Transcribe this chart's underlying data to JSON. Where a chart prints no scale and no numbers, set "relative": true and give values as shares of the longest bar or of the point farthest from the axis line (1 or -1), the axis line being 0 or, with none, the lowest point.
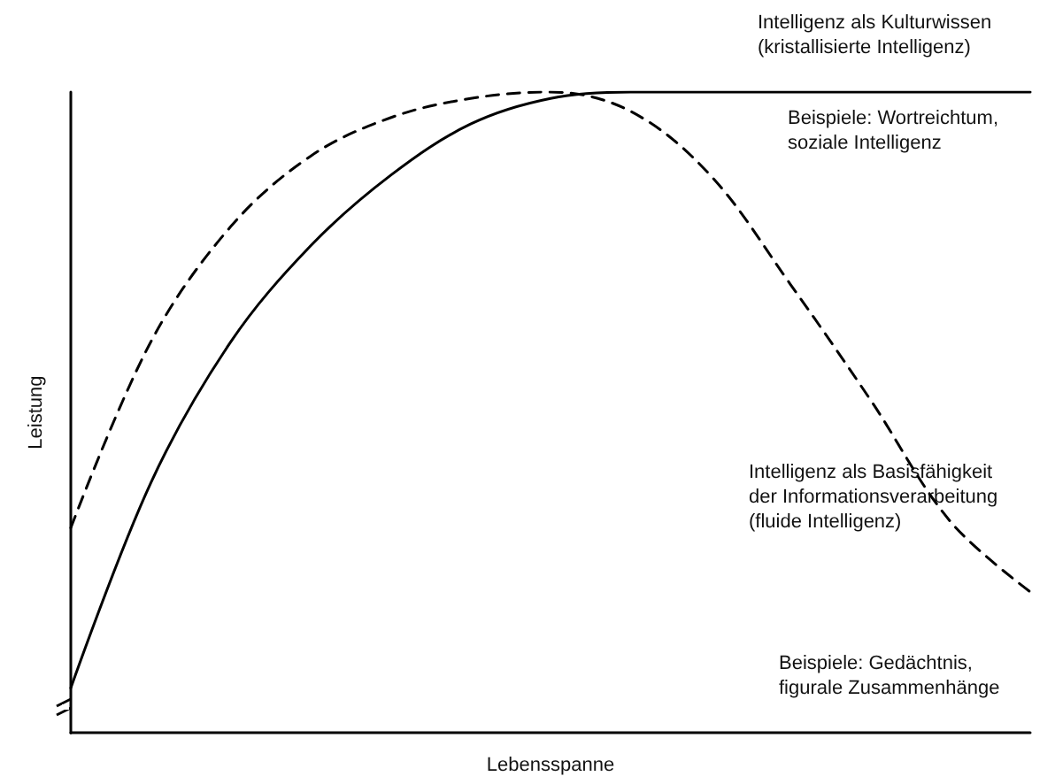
{
  "chart_data": {
    "type": "line",
    "relative": true,
    "xlabel": "Lebensspanne",
    "ylabel": "Leistung",
    "grid": false,
    "marker": "none",
    "categories": [
      null,
      null,
      null,
      null,
      null,
      null,
      null,
      null,
      null,
      null,
      null,
      null,
      null
    ],
    "series": [
      {
        "color": "#000000",
        "line_style": "solid",
        "values": [
          0.07,
          0.39,
          0.61,
          0.76,
          0.87,
          0.95,
          0.99,
          1,
          1,
          1,
          1,
          1,
          1
        ]
      },
      {
        "color": "#000000",
        "line_style": "dashed",
        "values": [
          0.32,
          0.61,
          0.79,
          0.9,
          0.96,
          0.99,
          1,
          0.97,
          0.87,
          0.7,
          0.52,
          0.33,
          0.22
        ]
      }
    ],
    "annotations": [
      "Intelligenz als Kulturwissen\n(kristallisierte Intelligenz)",
      "Beispiele: Wortreichtum,\nsoziale Intelligenz",
      "Intelligenz als Basisfähigkeit\nder Informationsverarbeitung\n(fluide Intelligenz)",
      "Beispiele: Gedächtnis,\nfigurale Zusammenhänge"
    ]
  }
}
